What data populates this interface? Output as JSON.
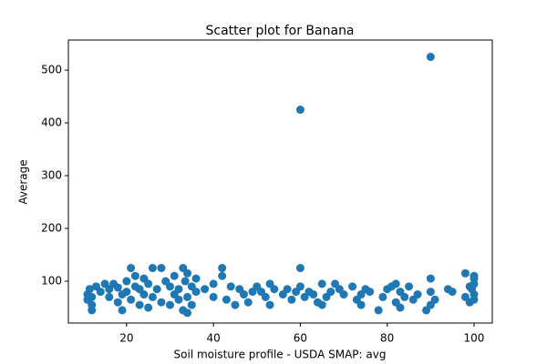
{
  "chart_data": {
    "type": "scatter",
    "title": "Scatter plot for Banana",
    "x_label": "Soil moisture profile - USDA SMAP: avg",
    "y_label": "Average",
    "color": "#1f77b4",
    "x": [
      11,
      11,
      11.5,
      12,
      12,
      12,
      13,
      14,
      15,
      16,
      16,
      17,
      18,
      18,
      19,
      19,
      20,
      20,
      21,
      21,
      22,
      22,
      23,
      23,
      24,
      24,
      25,
      25,
      26,
      26,
      27,
      28,
      28,
      29,
      30,
      30,
      31,
      31,
      32,
      32,
      33,
      33,
      33.5,
      34,
      34,
      34,
      35,
      35,
      36,
      36,
      38,
      40,
      40,
      42,
      42,
      43,
      44,
      45,
      46,
      47,
      48,
      49,
      50,
      51,
      52,
      53,
      53,
      54,
      56,
      57,
      58,
      59,
      60,
      60,
      60,
      61,
      62,
      63,
      64,
      65,
      65,
      66,
      67,
      68,
      69,
      70,
      72,
      73,
      74,
      74,
      75,
      76,
      78,
      79,
      80,
      81,
      82,
      82,
      83,
      83,
      84,
      85,
      86,
      87,
      89,
      90,
      90,
      90,
      90,
      91,
      94,
      95,
      98,
      98,
      99,
      99,
      100,
      100,
      100,
      100,
      100,
      99.5
    ],
    "values": [
      65,
      75,
      85,
      70,
      55,
      45,
      90,
      80,
      95,
      85,
      70,
      95,
      60,
      88,
      45,
      75,
      80,
      100,
      125,
      65,
      110,
      90,
      55,
      85,
      75,
      105,
      95,
      50,
      125,
      70,
      85,
      125,
      60,
      100,
      90,
      55,
      75,
      110,
      65,
      85,
      45,
      125,
      100,
      40,
      70,
      115,
      55,
      90,
      80,
      105,
      85,
      95,
      70,
      110,
      125,
      65,
      90,
      55,
      85,
      75,
      60,
      80,
      90,
      80,
      70,
      55,
      95,
      85,
      75,
      85,
      65,
      80,
      125,
      425,
      90,
      70,
      80,
      75,
      60,
      95,
      55,
      70,
      80,
      95,
      85,
      75,
      90,
      65,
      75,
      55,
      85,
      80,
      45,
      70,
      85,
      90,
      60,
      95,
      50,
      80,
      70,
      90,
      65,
      75,
      45,
      55,
      105,
      525,
      80,
      65,
      85,
      80,
      70,
      115,
      90,
      60,
      75,
      95,
      110,
      65,
      105,
      85
    ],
    "xlim": [
      6.6,
      104.2
    ],
    "ylim": [
      20.7,
      557
    ],
    "xticks": [
      20,
      40,
      60,
      80,
      100
    ],
    "yticks": [
      100,
      200,
      300,
      400,
      500
    ]
  }
}
